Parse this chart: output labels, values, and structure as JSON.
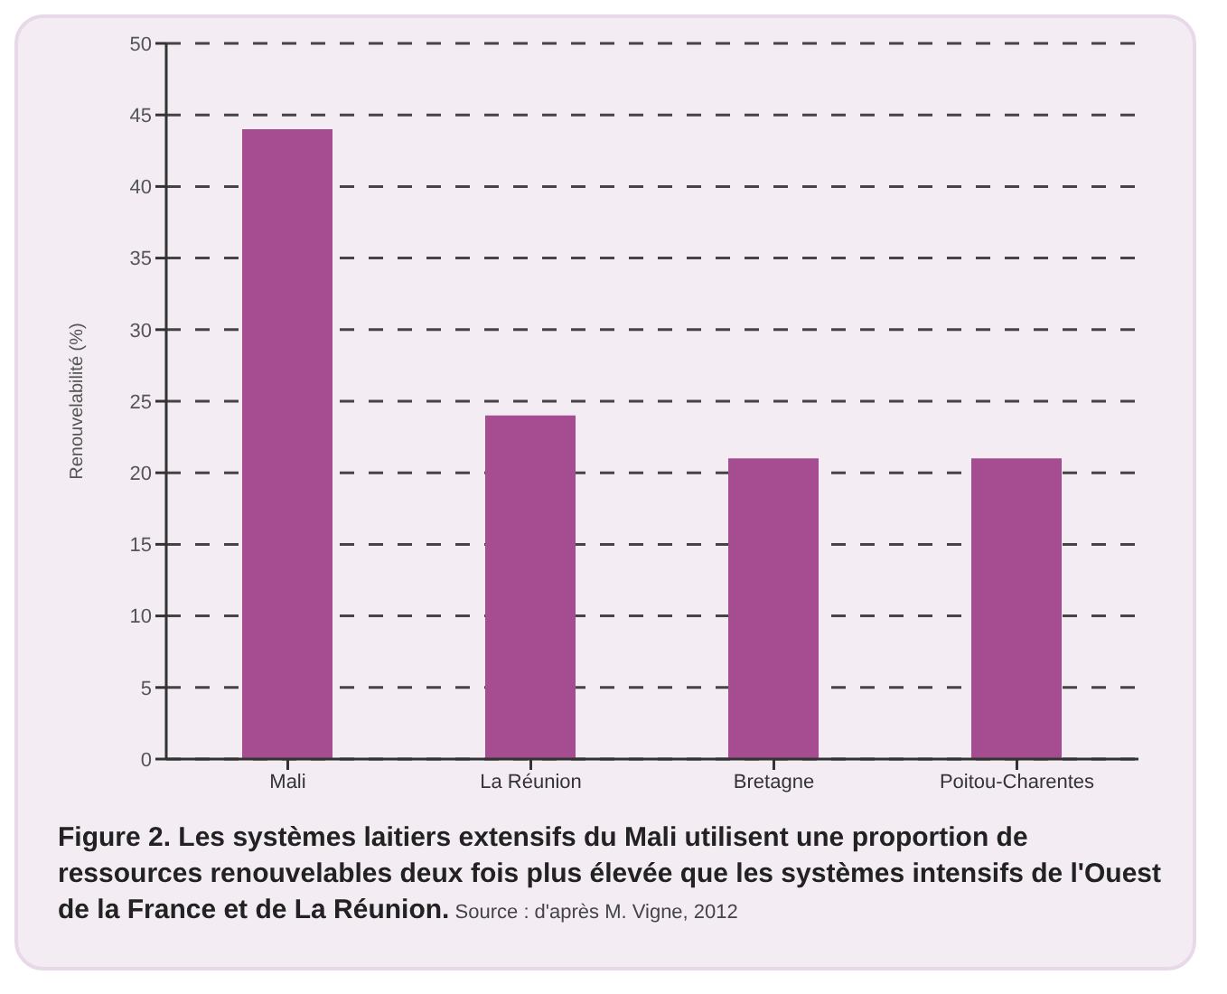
{
  "chart_data": {
    "type": "bar",
    "ylabel": "Renouvelabilité (%)",
    "categories": [
      "Mali",
      "La Réunion",
      "Bretagne",
      "Poitou-Charentes"
    ],
    "values": [
      44,
      24,
      21,
      21
    ],
    "color": "#a64d91",
    "ylim": [
      0,
      50
    ],
    "yticks": [
      0,
      5,
      10,
      15,
      20,
      25,
      30,
      35,
      40,
      45,
      50
    ],
    "grid": "y",
    "annotations": [
      "Figure 2. Les systèmes laitiers extensifs du Mali utilisent une proportion de ressources renouvelables deux fois plus élevée que les systèmes intensifs de l'Ouest de la France et de La Réunion.",
      "Source : d'après M. Vigne, 2012"
    ]
  }
}
